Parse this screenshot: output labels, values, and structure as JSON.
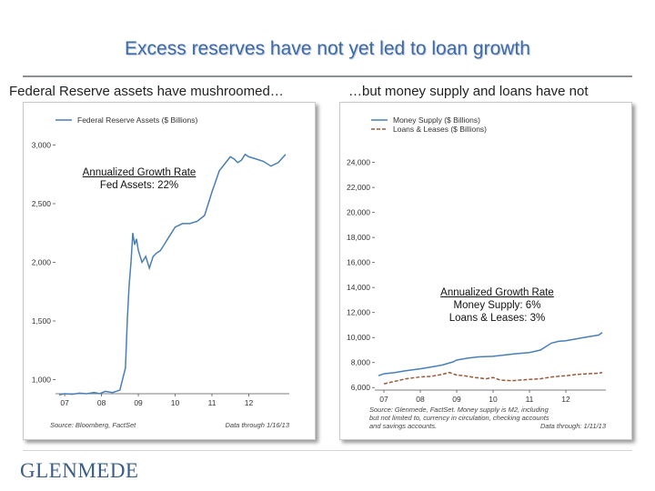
{
  "slide": {
    "title": "Excess reserves have not yet led to loan growth",
    "subtitle_left": "Federal Reserve assets have mushroomed…",
    "subtitle_right": "…but money supply and loans have not",
    "logo_text": "GLENMEDE"
  },
  "chart_data": [
    {
      "type": "line",
      "ylim": [
        880,
        3050
      ],
      "xlim": [
        2006.75,
        2013.1
      ],
      "yticks": [
        "3,000",
        "2,500",
        "2,000",
        "1,500",
        "1,000"
      ],
      "ytick_values": [
        3000,
        2500,
        2000,
        1500,
        1000
      ],
      "xticks": [
        "07",
        "08",
        "09",
        "10",
        "11",
        "12"
      ],
      "xtick_values": [
        2007,
        2008,
        2009,
        2010,
        2011,
        2012
      ],
      "annotation_title": "Annualized Growth Rate",
      "annotation_line1": "Fed Assets: 22%",
      "source_left": "Source: Bloomberg, FactSet",
      "source_right": "Data through 1/16/13",
      "series": [
        {
          "name": "Federal Reserve Assets ($ Billions)",
          "color": "#4a7fb5",
          "dash": false,
          "x": [
            2006.85,
            2007.0,
            2007.2,
            2007.4,
            2007.6,
            2007.8,
            2007.95,
            2008.1,
            2008.3,
            2008.5,
            2008.65,
            2008.7,
            2008.75,
            2008.8,
            2008.85,
            2008.9,
            2008.95,
            2009.0,
            2009.1,
            2009.2,
            2009.3,
            2009.4,
            2009.5,
            2009.6,
            2009.7,
            2009.8,
            2009.9,
            2010.0,
            2010.2,
            2010.4,
            2010.6,
            2010.8,
            2011.0,
            2011.2,
            2011.4,
            2011.5,
            2011.6,
            2011.7,
            2011.8,
            2011.9,
            2012.0,
            2012.2,
            2012.4,
            2012.6,
            2012.8,
            2013.0
          ],
          "y": [
            870,
            880,
            875,
            885,
            880,
            890,
            880,
            900,
            890,
            910,
            1100,
            1500,
            1800,
            2000,
            2250,
            2150,
            2200,
            2100,
            2000,
            2050,
            1950,
            2050,
            2080,
            2100,
            2150,
            2200,
            2250,
            2300,
            2330,
            2330,
            2350,
            2400,
            2600,
            2780,
            2860,
            2900,
            2880,
            2850,
            2870,
            2920,
            2900,
            2880,
            2860,
            2820,
            2850,
            2920
          ]
        }
      ]
    },
    {
      "type": "line",
      "ylim": [
        5800,
        25500
      ],
      "xlim": [
        2006.75,
        2013.1
      ],
      "yticks": [
        "24,000",
        "22,000",
        "20,000",
        "18,000",
        "16,000",
        "14,000",
        "12,000",
        "10,000",
        "8,000",
        "6,000"
      ],
      "ytick_values": [
        24000,
        22000,
        20000,
        18000,
        16000,
        14000,
        12000,
        10000,
        8000,
        6000
      ],
      "xticks": [
        "07",
        "08",
        "09",
        "10",
        "11",
        "12"
      ],
      "xtick_values": [
        2007,
        2008,
        2009,
        2010,
        2011,
        2012
      ],
      "annotation_title": "Annualized Growth Rate",
      "annotation_line1": "Money Supply: 6%",
      "annotation_line2": "Loans & Leases: 3%",
      "source_left": "Source: Glenmede, FactSet. Money supply is M2, including",
      "source_line2": "but not limited to, currency in circulation, checking accounts",
      "source_line3": "and savings accounts.",
      "source_right": "Data through: 1/11/13",
      "series": [
        {
          "name": "Money Supply ($ Billions)",
          "color": "#4a7fb5",
          "dash": false,
          "x": [
            2006.85,
            2007.0,
            2007.3,
            2007.6,
            2008.0,
            2008.3,
            2008.6,
            2008.9,
            2009.0,
            2009.3,
            2009.6,
            2010.0,
            2010.3,
            2010.6,
            2011.0,
            2011.3,
            2011.6,
            2011.8,
            2012.0,
            2012.3,
            2012.6,
            2012.9,
            2013.0
          ],
          "y": [
            6950,
            7100,
            7200,
            7350,
            7500,
            7650,
            7800,
            8050,
            8200,
            8350,
            8450,
            8500,
            8600,
            8700,
            8800,
            9000,
            9550,
            9700,
            9750,
            9900,
            10050,
            10200,
            10400
          ]
        },
        {
          "name": "Loans & Leases ($ Billions)",
          "color": "#9a5a3a",
          "dash": true,
          "x": [
            2007.0,
            2007.3,
            2007.6,
            2008.0,
            2008.3,
            2008.6,
            2008.8,
            2009.0,
            2009.2,
            2009.5,
            2009.8,
            2010.0,
            2010.2,
            2010.5,
            2011.0,
            2011.3,
            2011.6,
            2012.0,
            2012.3,
            2012.6,
            2012.9,
            2013.0
          ],
          "y": [
            6300,
            6500,
            6700,
            6850,
            6900,
            7050,
            7200,
            7000,
            6950,
            6800,
            6700,
            6800,
            6600,
            6550,
            6650,
            6700,
            6850,
            6950,
            7050,
            7100,
            7150,
            7200
          ]
        }
      ]
    }
  ]
}
